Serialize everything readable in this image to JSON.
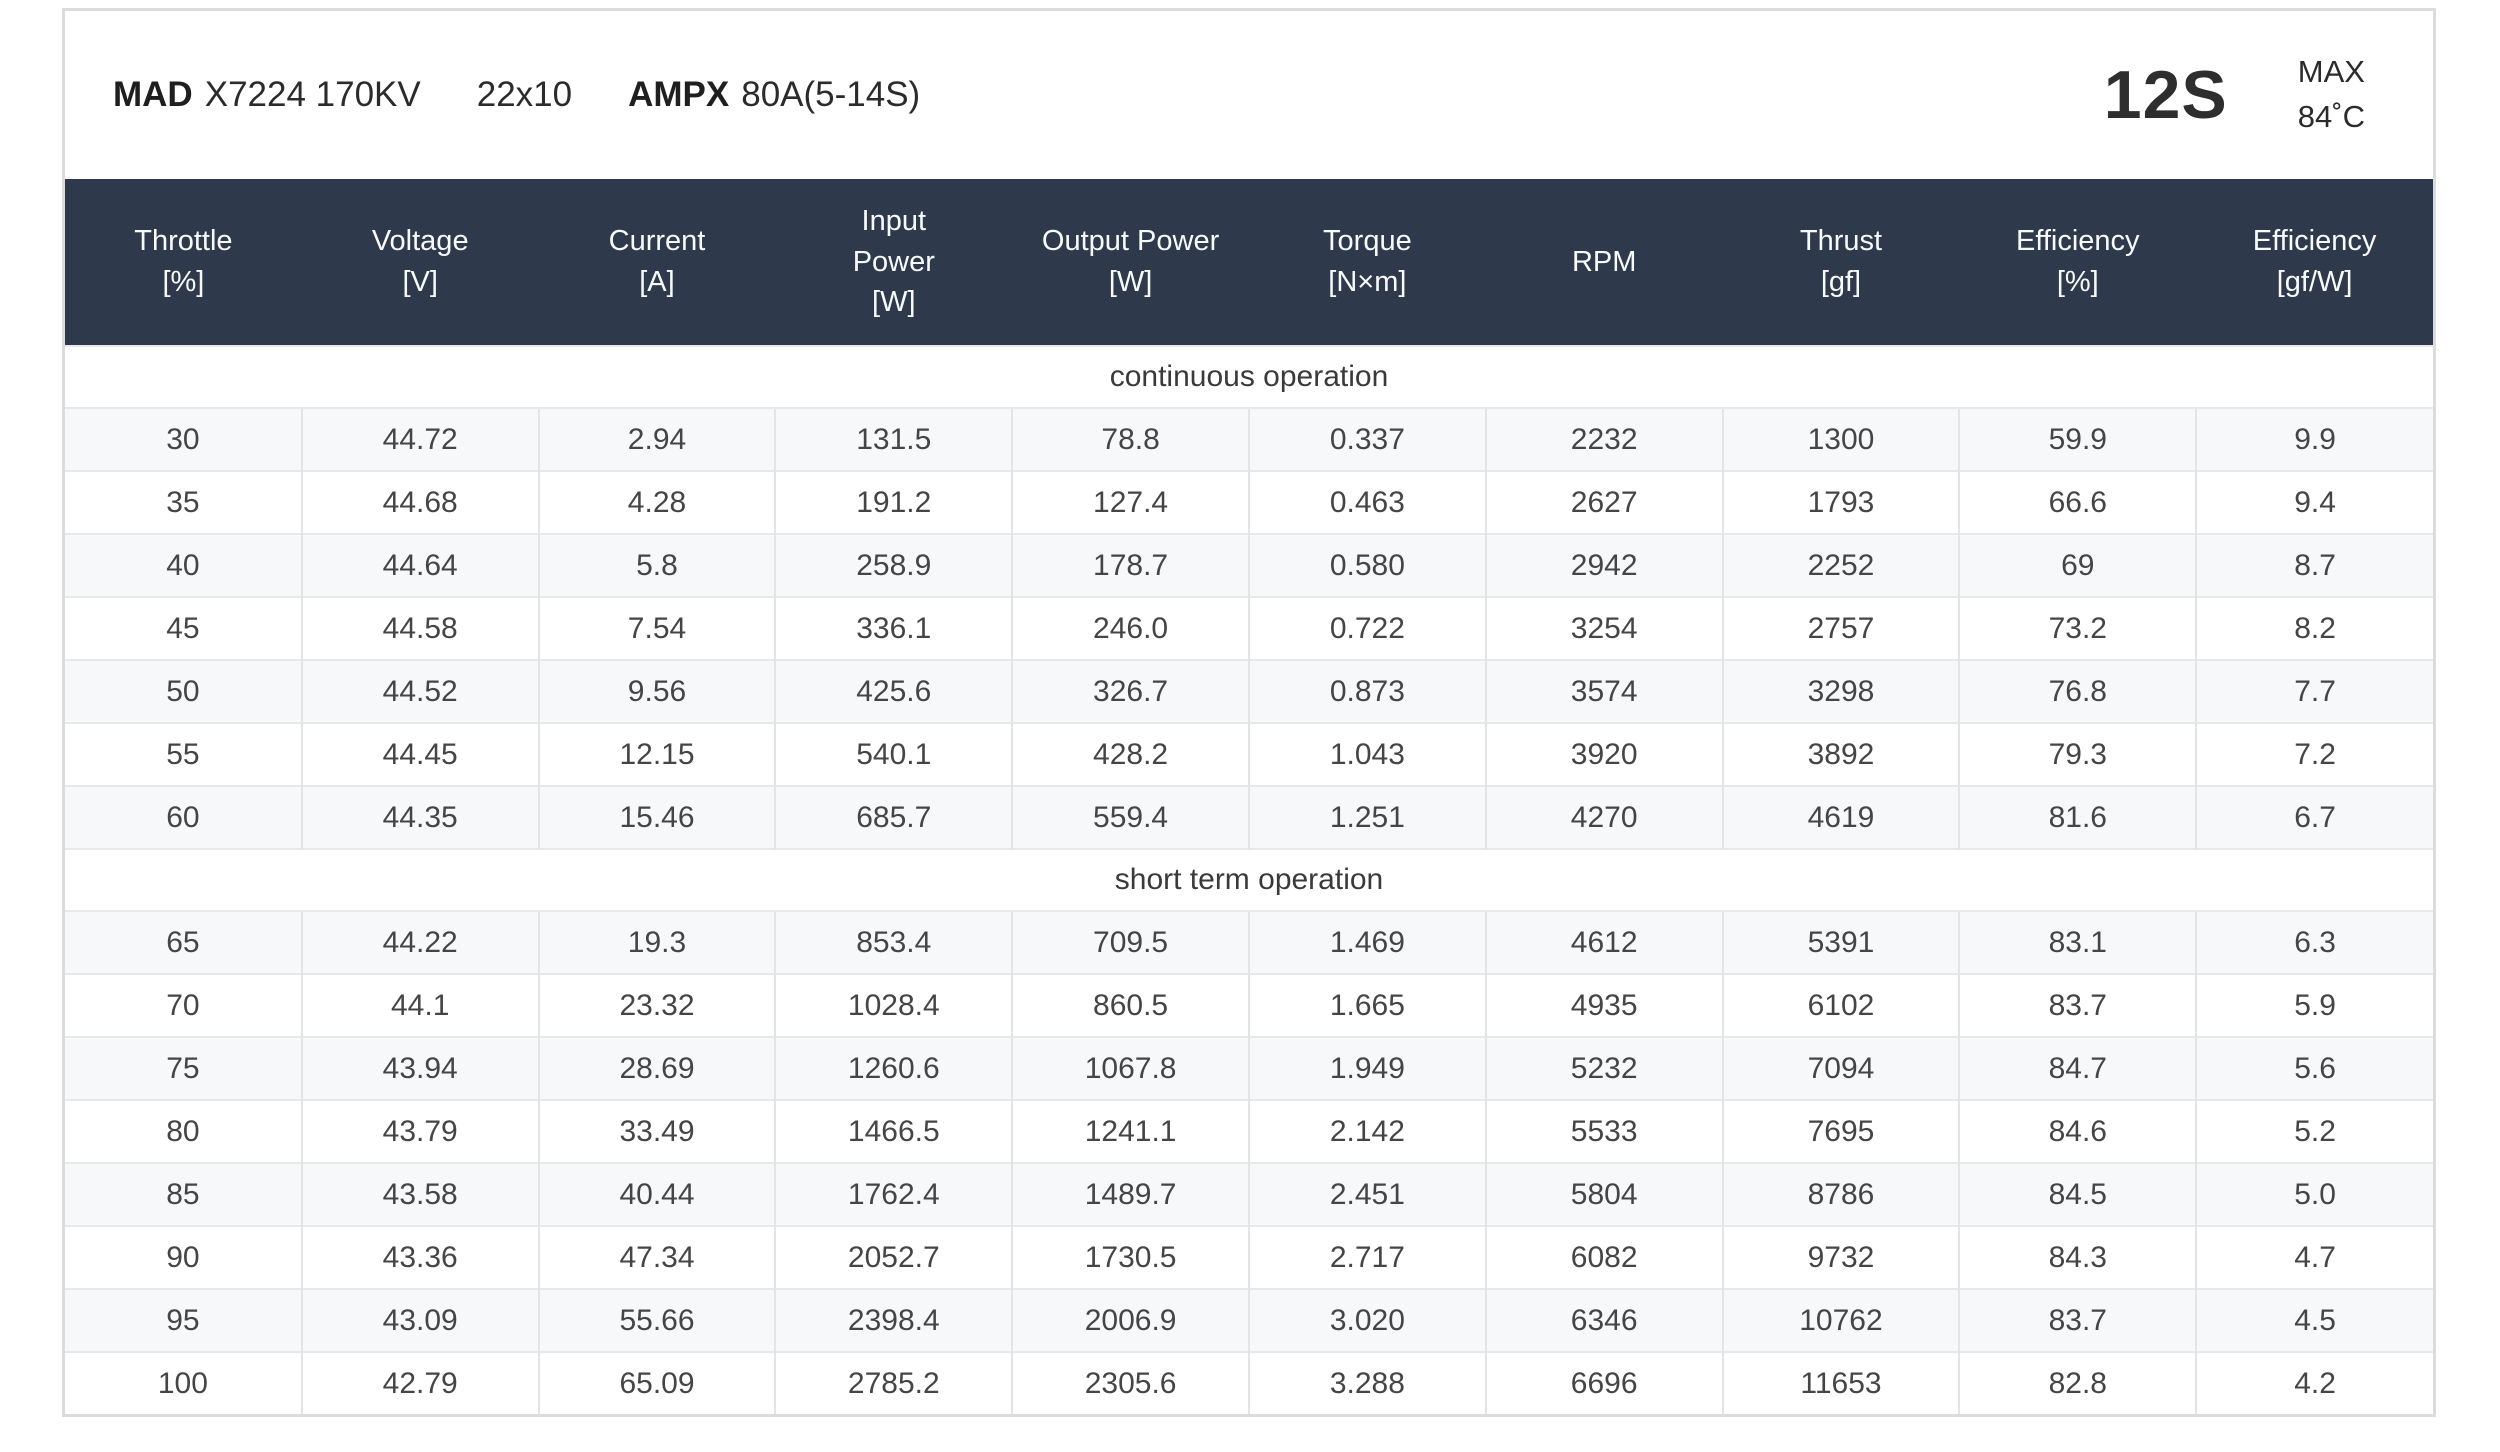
{
  "header": {
    "brand": "MAD",
    "motor_model": "X7224 170KV",
    "propeller": "22x10",
    "esc_brand": "AMPX",
    "esc_model": "80A(5-14S)",
    "battery": "12S",
    "max_label": "MAX",
    "max_temp": "84˚C"
  },
  "table": {
    "columns": [
      {
        "lines": [
          "Throttle"
        ],
        "unit": "[%]"
      },
      {
        "lines": [
          "Voltage"
        ],
        "unit": "[V]"
      },
      {
        "lines": [
          "Current"
        ],
        "unit": "[A]"
      },
      {
        "lines": [
          "Input",
          "Power"
        ],
        "unit": "[W]"
      },
      {
        "lines": [
          "Output Power"
        ],
        "unit": "[W]"
      },
      {
        "lines": [
          "Torque"
        ],
        "unit": "[N×m]"
      },
      {
        "lines": [
          "RPM"
        ],
        "unit": ""
      },
      {
        "lines": [
          "Thrust"
        ],
        "unit": "[gf]"
      },
      {
        "lines": [
          "Efficiency"
        ],
        "unit": "[%]"
      },
      {
        "lines": [
          "Efficiency"
        ],
        "unit": "[gf/W]"
      }
    ],
    "sections": [
      {
        "label": "continuous operation",
        "rows": [
          [
            "30",
            "44.72",
            "2.94",
            "131.5",
            "78.8",
            "0.337",
            "2232",
            "1300",
            "59.9",
            "9.9"
          ],
          [
            "35",
            "44.68",
            "4.28",
            "191.2",
            "127.4",
            "0.463",
            "2627",
            "1793",
            "66.6",
            "9.4"
          ],
          [
            "40",
            "44.64",
            "5.8",
            "258.9",
            "178.7",
            "0.580",
            "2942",
            "2252",
            "69",
            "8.7"
          ],
          [
            "45",
            "44.58",
            "7.54",
            "336.1",
            "246.0",
            "0.722",
            "3254",
            "2757",
            "73.2",
            "8.2"
          ],
          [
            "50",
            "44.52",
            "9.56",
            "425.6",
            "326.7",
            "0.873",
            "3574",
            "3298",
            "76.8",
            "7.7"
          ],
          [
            "55",
            "44.45",
            "12.15",
            "540.1",
            "428.2",
            "1.043",
            "3920",
            "3892",
            "79.3",
            "7.2"
          ],
          [
            "60",
            "44.35",
            "15.46",
            "685.7",
            "559.4",
            "1.251",
            "4270",
            "4619",
            "81.6",
            "6.7"
          ]
        ]
      },
      {
        "label": "short term operation",
        "rows": [
          [
            "65",
            "44.22",
            "19.3",
            "853.4",
            "709.5",
            "1.469",
            "4612",
            "5391",
            "83.1",
            "6.3"
          ],
          [
            "70",
            "44.1",
            "23.32",
            "1028.4",
            "860.5",
            "1.665",
            "4935",
            "6102",
            "83.7",
            "5.9"
          ],
          [
            "75",
            "43.94",
            "28.69",
            "1260.6",
            "1067.8",
            "1.949",
            "5232",
            "7094",
            "84.7",
            "5.6"
          ],
          [
            "80",
            "43.79",
            "33.49",
            "1466.5",
            "1241.1",
            "2.142",
            "5533",
            "7695",
            "84.6",
            "5.2"
          ],
          [
            "85",
            "43.58",
            "40.44",
            "1762.4",
            "1489.7",
            "2.451",
            "5804",
            "8786",
            "84.5",
            "5.0"
          ],
          [
            "90",
            "43.36",
            "47.34",
            "2052.7",
            "1730.5",
            "2.717",
            "6082",
            "9732",
            "84.3",
            "4.7"
          ],
          [
            "95",
            "43.09",
            "55.66",
            "2398.4",
            "2006.9",
            "3.020",
            "6346",
            "10762",
            "83.7",
            "4.5"
          ],
          [
            "100",
            "42.79",
            "65.09",
            "2785.2",
            "2305.6",
            "3.288",
            "6696",
            "11653",
            "82.8",
            "4.2"
          ]
        ]
      }
    ]
  },
  "colors": {
    "header_bg": "#2e3a4b",
    "stripe_bg": "#f6f8fa",
    "card_border": "#dcdcdc"
  }
}
